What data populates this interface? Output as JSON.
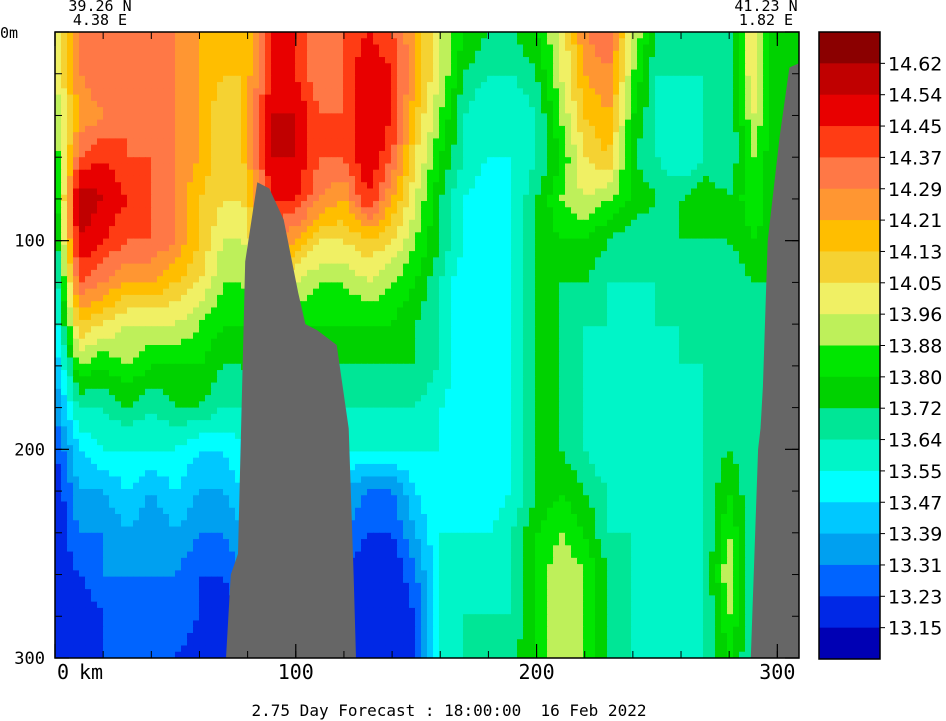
{
  "chart_data": {
    "type": "heatmap",
    "title": "",
    "corner_labels": {
      "start_lat": "39.26 N",
      "start_lon": "4.38 E",
      "end_lat": "41.23 N",
      "end_lon": "1.82 E"
    },
    "xlabel": "",
    "x_unit_label": "km",
    "ylabel": "",
    "y_unit_label": "m",
    "xlim": [
      0,
      309
    ],
    "ylim": [
      0,
      300
    ],
    "y_reversed": true,
    "x_ticks": [
      "0",
      "100",
      "200",
      "300"
    ],
    "x_tick_values": [
      0,
      100,
      200,
      300
    ],
    "y_ticks": [
      "0",
      "100",
      "200",
      "300"
    ],
    "y_tick_values": [
      0,
      100,
      200,
      300
    ],
    "x_minor_step": 20,
    "y_minor_step": 20,
    "footer": "2.75 Day Forecast : 18:00:00  16 Feb 2022",
    "legend": {
      "placement": "right",
      "labels": [
        "14.62",
        "14.54",
        "14.45",
        "14.37",
        "14.29",
        "14.21",
        "14.13",
        "14.05",
        "13.96",
        "13.88",
        "13.80",
        "13.72",
        "13.64",
        "13.55",
        "13.47",
        "13.39",
        "13.31",
        "13.23",
        "13.15"
      ],
      "colors": [
        "#8b0000",
        "#c00000",
        "#e80000",
        "#ff3c14",
        "#ff7846",
        "#ff9632",
        "#ffbe00",
        "#f5d232",
        "#f0f064",
        "#bef05a",
        "#00e600",
        "#00d200",
        "#00e696",
        "#00f5c8",
        "#00ffff",
        "#00c8ff",
        "#00a0f0",
        "#0064ff",
        "#0028e6",
        "#0000b4"
      ],
      "levels": [
        14.66,
        14.62,
        14.54,
        14.45,
        14.37,
        14.29,
        14.21,
        14.13,
        14.05,
        13.96,
        13.88,
        13.8,
        13.72,
        13.64,
        13.55,
        13.47,
        13.39,
        13.31,
        13.23,
        13.15
      ]
    },
    "land_color": "#666666",
    "bathymetry": {
      "description_points_km_m": [
        [
          71,
          300
        ],
        [
          73,
          260
        ],
        [
          76,
          250
        ],
        [
          79,
          110
        ],
        [
          84,
          72
        ],
        [
          89,
          75
        ],
        [
          95,
          90
        ],
        [
          101,
          125
        ],
        [
          104,
          140
        ],
        [
          109,
          143
        ],
        [
          117,
          150
        ],
        [
          122,
          190
        ],
        [
          124,
          260
        ],
        [
          125,
          300
        ],
        [
          289,
          300
        ],
        [
          292,
          200
        ],
        [
          293,
          190
        ],
        [
          294,
          170
        ],
        [
          296,
          100
        ],
        [
          301,
          50
        ],
        [
          305,
          17
        ],
        [
          309,
          15
        ],
        [
          309,
          300
        ]
      ]
    },
    "value_grid": {
      "x_km": [
        0,
        10,
        20,
        30,
        40,
        50,
        60,
        70,
        78,
        90,
        100,
        110,
        120,
        130,
        140,
        150,
        160,
        170,
        180,
        190,
        200,
        210,
        220,
        230,
        240,
        250,
        260,
        270,
        280,
        290,
        300,
        309
      ],
      "depth_m": [
        0,
        20,
        40,
        60,
        80,
        100,
        120,
        140,
        160,
        180,
        200,
        220,
        240,
        260,
        280,
        300
      ],
      "values": [
        [
          13.96,
          14.29,
          14.37,
          14.29,
          14.29,
          14.29,
          14.21,
          14.13,
          14.13,
          14.45,
          14.45,
          14.29,
          14.37,
          14.45,
          14.37,
          14.21,
          13.96,
          13.8,
          13.72,
          13.72,
          13.8,
          13.96,
          14.29,
          14.37,
          13.96,
          13.72,
          13.72,
          13.72,
          13.64,
          14.05,
          13.72,
          13.72
        ],
        [
          13.96,
          14.29,
          14.37,
          14.29,
          14.29,
          14.29,
          14.21,
          14.13,
          14.13,
          14.45,
          14.45,
          14.29,
          14.37,
          14.54,
          14.45,
          14.21,
          13.96,
          13.72,
          13.64,
          13.64,
          13.72,
          13.96,
          14.21,
          14.29,
          13.88,
          13.64,
          13.64,
          13.64,
          13.64,
          14.05,
          13.72,
          13.72
        ],
        [
          13.88,
          14.21,
          14.29,
          14.37,
          14.29,
          14.29,
          14.21,
          14.05,
          14.13,
          14.54,
          14.54,
          14.37,
          14.37,
          14.54,
          14.45,
          14.13,
          13.88,
          13.64,
          13.55,
          13.55,
          13.64,
          13.88,
          14.13,
          14.21,
          13.8,
          13.64,
          13.55,
          13.64,
          13.64,
          13.96,
          13.72,
          13.72
        ],
        [
          13.8,
          14.37,
          14.45,
          14.37,
          14.37,
          14.29,
          14.21,
          14.05,
          14.13,
          14.54,
          14.54,
          14.37,
          14.37,
          14.54,
          14.37,
          14.05,
          13.8,
          13.64,
          13.55,
          13.55,
          13.64,
          13.8,
          14.05,
          14.13,
          13.72,
          13.64,
          13.55,
          13.64,
          13.64,
          13.88,
          13.72,
          13.72
        ],
        [
          13.72,
          14.62,
          14.54,
          14.45,
          14.37,
          14.29,
          14.13,
          14.05,
          14.05,
          14.45,
          14.45,
          14.29,
          14.21,
          14.45,
          14.21,
          13.96,
          13.72,
          13.55,
          13.47,
          13.55,
          13.72,
          13.88,
          13.96,
          13.88,
          13.8,
          13.72,
          13.72,
          13.8,
          13.72,
          13.88,
          13.72,
          13.72
        ],
        [
          13.64,
          14.54,
          14.45,
          14.37,
          14.37,
          14.29,
          14.13,
          13.96,
          13.96,
          14.29,
          14.21,
          14.05,
          14.05,
          14.13,
          14.05,
          13.88,
          13.72,
          13.55,
          13.47,
          13.55,
          13.72,
          13.8,
          13.8,
          13.72,
          13.64,
          13.64,
          13.72,
          13.72,
          13.72,
          13.8,
          13.72,
          13.72
        ],
        [
          13.55,
          14.37,
          14.29,
          14.21,
          14.21,
          14.13,
          14.05,
          13.88,
          13.88,
          14.05,
          13.96,
          13.88,
          13.88,
          13.96,
          13.88,
          13.8,
          13.64,
          13.47,
          13.47,
          13.55,
          13.72,
          13.72,
          13.72,
          13.64,
          13.64,
          13.64,
          13.64,
          13.64,
          13.64,
          13.72,
          13.72,
          13.72
        ],
        [
          13.47,
          14.13,
          14.05,
          13.96,
          13.96,
          13.96,
          13.88,
          13.8,
          13.8,
          13.88,
          13.8,
          13.8,
          13.8,
          13.8,
          13.8,
          13.72,
          13.64,
          13.47,
          13.47,
          13.55,
          13.72,
          13.72,
          13.64,
          13.64,
          13.55,
          13.64,
          13.64,
          13.64,
          13.64,
          13.64,
          13.72,
          13.72
        ],
        [
          13.39,
          13.88,
          13.8,
          13.88,
          13.8,
          13.8,
          13.8,
          13.72,
          13.72,
          13.8,
          13.72,
          13.72,
          13.72,
          13.72,
          13.72,
          13.72,
          13.64,
          13.47,
          13.47,
          13.55,
          13.72,
          13.72,
          13.64,
          13.55,
          13.55,
          13.55,
          13.64,
          13.64,
          13.64,
          13.64,
          13.72,
          13.72
        ],
        [
          13.31,
          13.64,
          13.64,
          13.72,
          13.64,
          13.72,
          13.72,
          13.64,
          13.64,
          13.72,
          13.64,
          13.64,
          13.64,
          13.64,
          13.64,
          13.64,
          13.55,
          13.47,
          13.47,
          13.55,
          13.72,
          13.72,
          13.64,
          13.55,
          13.55,
          13.55,
          13.55,
          13.64,
          13.64,
          13.64,
          13.72,
          13.72
        ],
        [
          13.23,
          13.47,
          13.55,
          13.55,
          13.55,
          13.55,
          13.47,
          13.47,
          13.55,
          13.64,
          13.55,
          13.55,
          13.55,
          13.55,
          13.55,
          13.55,
          13.55,
          13.47,
          13.47,
          13.55,
          13.72,
          13.72,
          13.64,
          13.55,
          13.55,
          13.55,
          13.55,
          13.64,
          13.72,
          13.64,
          13.72,
          13.72
        ],
        [
          13.15,
          13.39,
          13.39,
          13.47,
          13.39,
          13.47,
          13.39,
          13.39,
          13.47,
          13.55,
          13.47,
          13.47,
          13.39,
          13.31,
          13.31,
          13.47,
          13.55,
          13.47,
          13.47,
          13.55,
          13.72,
          13.8,
          13.72,
          13.64,
          13.55,
          13.55,
          13.55,
          13.64,
          13.8,
          13.64,
          13.72,
          13.72
        ],
        [
          13.15,
          13.31,
          13.31,
          13.39,
          13.31,
          13.39,
          13.31,
          13.31,
          13.39,
          13.47,
          13.39,
          13.39,
          13.31,
          13.23,
          13.23,
          13.39,
          13.55,
          13.55,
          13.55,
          13.64,
          13.8,
          13.88,
          13.8,
          13.64,
          13.64,
          13.55,
          13.55,
          13.64,
          13.88,
          13.64,
          13.72,
          13.72
        ],
        [
          13.15,
          13.23,
          13.31,
          13.31,
          13.31,
          13.31,
          13.23,
          13.23,
          13.31,
          13.39,
          13.31,
          13.31,
          13.23,
          13.15,
          13.15,
          13.31,
          13.55,
          13.55,
          13.55,
          13.64,
          13.8,
          13.96,
          13.88,
          13.72,
          13.64,
          13.55,
          13.55,
          13.64,
          13.96,
          13.64,
          13.72,
          13.72
        ],
        [
          13.15,
          13.15,
          13.23,
          13.31,
          13.23,
          13.31,
          13.23,
          13.15,
          13.23,
          13.31,
          13.23,
          13.23,
          13.15,
          13.15,
          13.15,
          13.23,
          13.55,
          13.64,
          13.64,
          13.64,
          13.8,
          13.96,
          13.88,
          13.72,
          13.64,
          13.55,
          13.55,
          13.64,
          13.88,
          13.64,
          13.72,
          13.72
        ],
        [
          13.15,
          13.15,
          13.23,
          13.23,
          13.23,
          13.23,
          13.15,
          13.15,
          13.23,
          13.23,
          13.23,
          13.15,
          13.15,
          13.15,
          13.15,
          13.23,
          13.55,
          13.64,
          13.64,
          13.72,
          13.8,
          13.96,
          13.88,
          13.72,
          13.64,
          13.55,
          13.55,
          13.64,
          13.8,
          13.64,
          13.72,
          13.72
        ]
      ]
    }
  }
}
